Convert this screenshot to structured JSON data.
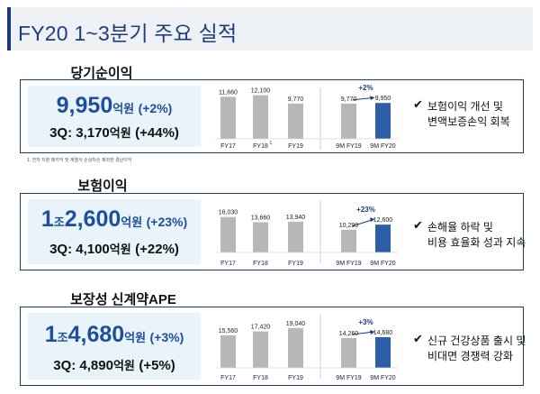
{
  "title": "FY20 1~3분기 주요 실적",
  "footnote": "1. 전자 지분 매각익 및 계열사 손상차손 제외한 경상이익",
  "colors": {
    "bar_gray": "#b7b7b7",
    "bar_highlight": "#2d5ea8",
    "accent": "#1c3a7a",
    "summary_bg": "#e8f3fa",
    "big_text": "#1f4f9c"
  },
  "sections": [
    {
      "title": "당기순이익",
      "big": {
        "prefix": "",
        "jo_unit": "",
        "number": "9,950",
        "unit": "억원",
        "pct": "(+2%)"
      },
      "q3": {
        "label": "3Q: 3,170",
        "unit": "억원",
        "pct": "(+44%)"
      },
      "bullets": [
        "보험이익 개선 및",
        "변액보증손익 회복"
      ],
      "check": "✔"
    },
    {
      "title": "보험이익",
      "big": {
        "prefix": "1",
        "jo_unit": "조",
        "number": "2,600",
        "unit": "억원",
        "pct": "(+23%)"
      },
      "q3": {
        "label": "3Q: 4,100",
        "unit": "억원",
        "pct": "(+22%)"
      },
      "bullets": [
        "손해율 하락 및",
        "비용 효율화 성과 지속"
      ],
      "check": "✔"
    },
    {
      "title": "보장성 신계약APE",
      "big": {
        "prefix": "1",
        "jo_unit": "조",
        "number": "4,680",
        "unit": "억원",
        "pct": "(+3%)"
      },
      "q3": {
        "label": "3Q: 4,890",
        "unit": "억원",
        "pct": "(+5%)"
      },
      "bullets": [
        "신규 건강상품 출시 및",
        "비대면 경쟁력 강화"
      ],
      "check": "✔"
    }
  ],
  "chart_data": [
    {
      "type": "bar",
      "categories": [
        "FY17",
        "FY18",
        "FY19"
      ],
      "category_superscripts": [
        "",
        "1",
        ""
      ],
      "values": [
        11660,
        12100,
        9770
      ],
      "value_labels": [
        "11,660",
        "12,100",
        "9,770"
      ],
      "comparison": {
        "categories": [
          "9M FY19",
          "9M FY20"
        ],
        "values": [
          9770,
          9950
        ],
        "value_labels": [
          "9,770",
          "9,950"
        ],
        "change_label": "+2%"
      }
    },
    {
      "type": "bar",
      "categories": [
        "FY17",
        "FY18",
        "FY19"
      ],
      "category_superscripts": [
        "",
        "",
        ""
      ],
      "values": [
        16030,
        13660,
        13940
      ],
      "value_labels": [
        "16,030",
        "13,660",
        "13,940"
      ],
      "comparison": {
        "categories": [
          "9M FY19",
          "9M FY20"
        ],
        "values": [
          10290,
          12600
        ],
        "value_labels": [
          "10,290",
          "12,600"
        ],
        "change_label": "+23%"
      }
    },
    {
      "type": "bar",
      "categories": [
        "FY17",
        "FY18",
        "FY19"
      ],
      "category_superscripts": [
        "",
        "",
        ""
      ],
      "values": [
        15560,
        17420,
        19040
      ],
      "value_labels": [
        "15,560",
        "17,420",
        "19,040"
      ],
      "comparison": {
        "categories": [
          "9M FY19",
          "9M FY20"
        ],
        "values": [
          14260,
          14680
        ],
        "value_labels": [
          "14,260",
          "14,680"
        ],
        "change_label": "+3%"
      }
    }
  ]
}
